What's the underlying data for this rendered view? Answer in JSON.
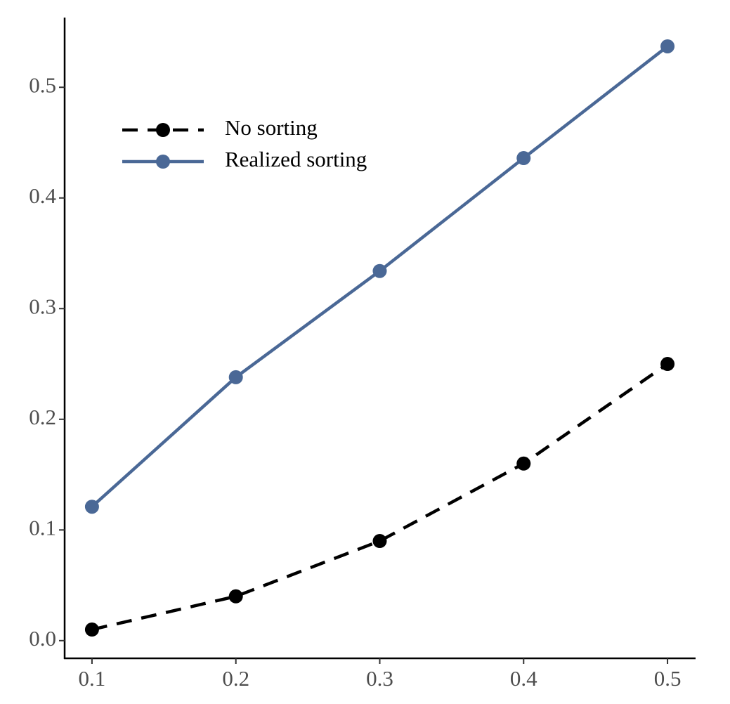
{
  "chart_data": {
    "type": "line",
    "x": [
      0.1,
      0.2,
      0.3,
      0.4,
      0.5
    ],
    "series": [
      {
        "name": "No sorting",
        "color": "#000000",
        "linestyle": "dashed",
        "values": [
          0.01,
          0.04,
          0.09,
          0.16,
          0.25
        ]
      },
      {
        "name": "Realized sorting",
        "color": "#4a6896",
        "linestyle": "solid",
        "values": [
          0.121,
          0.238,
          0.334,
          0.436,
          0.537
        ]
      }
    ],
    "xlim": [
      0.081,
      0.5195
    ],
    "xticks": [
      0.1,
      0.2,
      0.3,
      0.4,
      0.5
    ],
    "ylim": [
      -0.016,
      0.563
    ],
    "yticks": [
      {
        "value": 0,
        "label": "0.0"
      },
      0.1,
      0.2,
      0.3,
      0.4,
      0.5
    ],
    "grid": false,
    "legend": "top-left"
  }
}
